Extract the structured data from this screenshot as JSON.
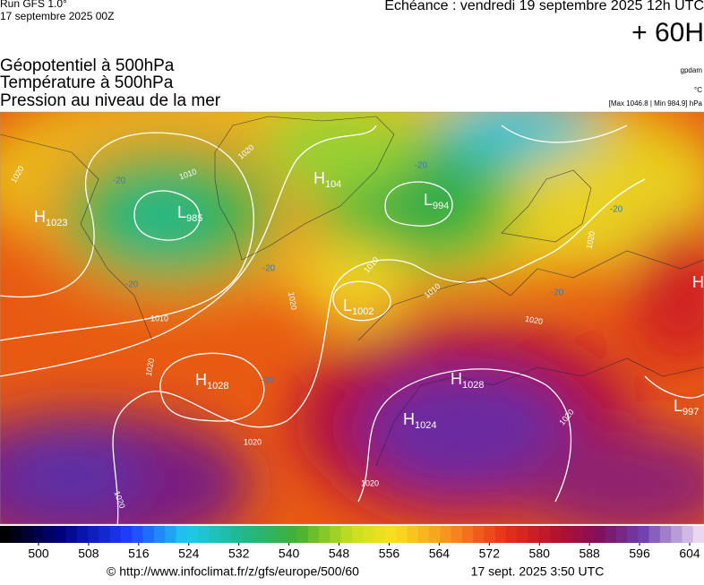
{
  "header": {
    "model": "Run GFS 1.0°",
    "run": "17 septembre 2025 00Z",
    "valid": "Echéance : vendredi 19 septembre 2025 12h UTC",
    "lead": "+ 60H"
  },
  "titles": [
    "Géopotentiel à 500hPa",
    "Température à 500hPa",
    "Pression au niveau de la mer"
  ],
  "units": [
    "gpdam",
    "°C",
    "[Max 1046.8 | Min 984.9] hPa"
  ],
  "centers": [
    {
      "type": "H",
      "value": 1023
    },
    {
      "type": "L",
      "value": 985
    },
    {
      "type": "H",
      "value": 104
    },
    {
      "type": "L",
      "value": 994
    },
    {
      "type": "L",
      "value": 1002
    },
    {
      "type": "H",
      "value": 1028
    },
    {
      "type": "H",
      "value": 1028
    },
    {
      "type": "H",
      "value": 1024
    },
    {
      "type": "L",
      "value": 997
    },
    {
      "type": "H"
    }
  ],
  "isobar_labels": [
    1020,
    1010,
    1020,
    1010,
    1020,
    1020,
    1020,
    1020,
    1010,
    1020,
    1020,
    1020,
    1010,
    1020
  ],
  "temperature_labels": [
    -20,
    -20,
    -20,
    -20,
    -20,
    -20,
    -20
  ],
  "colorbar": {
    "ticks": [
      500,
      508,
      516,
      524,
      532,
      540,
      548,
      556,
      564,
      572,
      580,
      588,
      596,
      604
    ]
  },
  "footer": {
    "url": "© http://www.infoclimat.fr/z/gfs/europe/500/60",
    "date": "17 sept. 2025  3:50 UTC"
  }
}
